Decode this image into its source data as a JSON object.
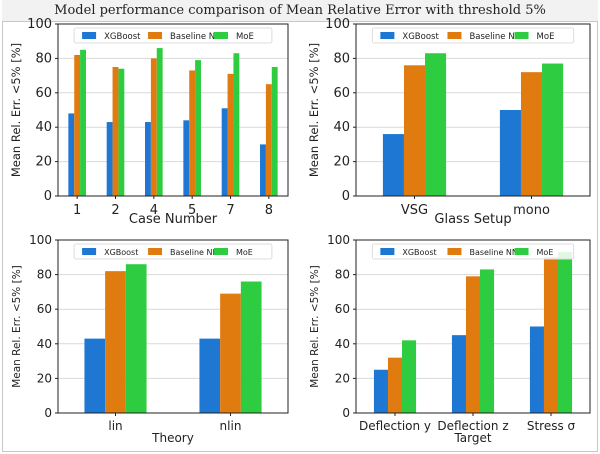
{
  "header": {
    "title": "Model performance comparison of Mean Relative Error with threshold 5%"
  },
  "colors": {
    "XGBoost": "#1f77d4",
    "Baseline NN": "#e07b10",
    "MoE": "#2ecc40",
    "grid": "#d9d9d9"
  },
  "chart_data": [
    {
      "type": "bar",
      "title": "",
      "xlabel": "Case Number",
      "ylabel": "Mean Rel. Err. <5% [%]",
      "ylim": [
        0,
        100
      ],
      "yticks": [
        0,
        20,
        40,
        60,
        80,
        100
      ],
      "grid": true,
      "legend": "top",
      "categories": [
        "1",
        "2",
        "4",
        "5",
        "7",
        "8"
      ],
      "series": [
        {
          "name": "XGBoost",
          "values": [
            48,
            43,
            43,
            44,
            51,
            30
          ]
        },
        {
          "name": "Baseline NN",
          "values": [
            82,
            75,
            80,
            73,
            71,
            65
          ]
        },
        {
          "name": "MoE",
          "values": [
            85,
            74,
            86,
            79,
            83,
            75
          ]
        }
      ]
    },
    {
      "type": "bar",
      "title": "",
      "xlabel": "Glass Setup",
      "ylabel": "Mean Rel. Err. <5% [%]",
      "ylim": [
        0,
        100
      ],
      "yticks": [
        0,
        20,
        40,
        60,
        80,
        100
      ],
      "grid": true,
      "legend": "top",
      "categories": [
        "VSG",
        "mono"
      ],
      "series": [
        {
          "name": "XGBoost",
          "values": [
            36,
            50
          ]
        },
        {
          "name": "Baseline NN",
          "values": [
            76,
            72
          ]
        },
        {
          "name": "MoE",
          "values": [
            83,
            77
          ]
        }
      ]
    },
    {
      "type": "bar",
      "title": "",
      "xlabel": "Theory",
      "ylabel": "Mean Rel. Err. <5% [%]",
      "ylim": [
        0,
        100
      ],
      "yticks": [
        0,
        20,
        40,
        60,
        80,
        100
      ],
      "grid": true,
      "legend": "top",
      "categories": [
        "lin",
        "nlin"
      ],
      "series": [
        {
          "name": "XGBoost",
          "values": [
            43,
            43
          ]
        },
        {
          "name": "Baseline NN",
          "values": [
            82,
            69
          ]
        },
        {
          "name": "MoE",
          "values": [
            86,
            76
          ]
        }
      ]
    },
    {
      "type": "bar",
      "title": "",
      "xlabel": "Target",
      "ylabel": "Mean Rel. Err. <5% [%]",
      "ylim": [
        0,
        100
      ],
      "yticks": [
        0,
        20,
        40,
        60,
        80,
        100
      ],
      "grid": true,
      "legend": "top",
      "categories": [
        "Deflection y",
        "Deflection z",
        "Stress σ"
      ],
      "series": [
        {
          "name": "XGBoost",
          "values": [
            25,
            45,
            50
          ]
        },
        {
          "name": "Baseline NN",
          "values": [
            32,
            79,
            90
          ]
        },
        {
          "name": "MoE",
          "values": [
            42,
            83,
            93
          ]
        }
      ]
    }
  ]
}
